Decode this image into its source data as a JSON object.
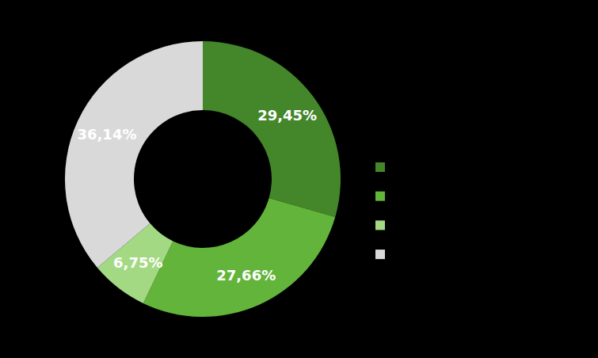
{
  "chart_data": {
    "type": "pie",
    "values": [
      29.45,
      27.66,
      6.75,
      36.14
    ],
    "value_labels": [
      "29,45%",
      "27,66%",
      "6,75%",
      "36,14%"
    ],
    "colors": [
      "#44862a",
      "#62b43a",
      "#a3d982",
      "#d9d9d9"
    ],
    "data_labels": true
  }
}
